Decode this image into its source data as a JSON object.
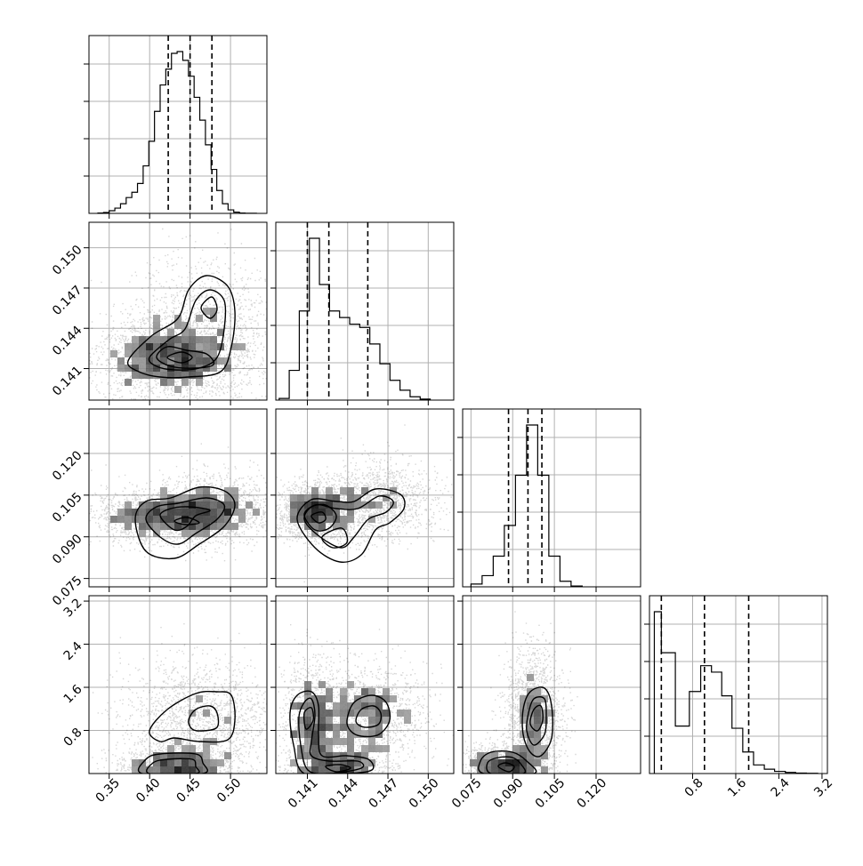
{
  "chart_data": {
    "type": "corner",
    "parameters": [
      {
        "range": [
          0.325,
          0.545
        ],
        "ticks": [
          0.35,
          0.4,
          0.45,
          0.5
        ],
        "tick_labels": [
          "0.35",
          "0.40",
          "0.45",
          "0.50"
        ],
        "quantiles": [
          0.423,
          0.45,
          0.477
        ],
        "hist": {
          "edges": [
            0.336,
            0.343,
            0.35,
            0.357,
            0.364,
            0.371,
            0.378,
            0.385,
            0.392,
            0.399,
            0.406,
            0.413,
            0.42,
            0.427,
            0.434,
            0.441,
            0.448,
            0.455,
            0.462,
            0.469,
            0.476,
            0.483,
            0.49,
            0.497,
            0.504,
            0.511,
            0.518,
            0.525,
            0.532
          ],
          "counts": [
            0.2,
            0.5,
            1.5,
            3,
            5.5,
            9,
            12,
            17,
            27,
            41,
            58,
            73,
            82,
            91,
            92,
            87,
            78,
            66,
            53,
            39,
            25,
            13,
            5.5,
            2,
            0.7,
            0.2,
            0.1,
            0.05
          ]
        }
      },
      {
        "range": [
          0.13865,
          0.1519
        ],
        "ticks": [
          0.141,
          0.144,
          0.147,
          0.15
        ],
        "tick_labels": [
          "0.141",
          "0.144",
          "0.147",
          "0.150"
        ],
        "quantiles": [
          0.141,
          0.1426,
          0.1455
        ],
        "hist": {
          "edges": [
            0.1389,
            0.13965,
            0.1404,
            0.14115,
            0.1419,
            0.14265,
            0.1434,
            0.14415,
            0.1449,
            0.14565,
            0.1464,
            0.14715,
            0.1479,
            0.14865,
            0.1494,
            0.15015
          ],
          "counts": [
            0.5,
            9,
            27,
            49,
            35,
            27,
            25,
            23,
            22,
            17,
            11,
            6,
            3,
            1,
            0.3
          ]
        }
      },
      {
        "range": [
          0.072,
          0.136
        ],
        "ticks": [
          0.075,
          0.09,
          0.105,
          0.12
        ],
        "tick_labels": [
          "0.075",
          "0.090",
          "0.105",
          "0.120"
        ],
        "quantiles": [
          0.0885,
          0.0955,
          0.1005
        ],
        "hist": {
          "edges": [
            0.075,
            0.079,
            0.083,
            0.087,
            0.091,
            0.095,
            0.099,
            0.103,
            0.107,
            0.111,
            0.115
          ],
          "counts": [
            1,
            4,
            11,
            22,
            40,
            58,
            40,
            11,
            2,
            0.3
          ]
        }
      },
      {
        "range": [
          0.0,
          3.3
        ],
        "ticks": [
          0.8,
          1.6,
          2.4,
          3.2
        ],
        "tick_labels": [
          "0.8",
          "1.6",
          "2.4",
          "3.2"
        ],
        "quantiles": [
          0.22,
          1.02,
          1.84
        ],
        "hist": {
          "edges": [
            0.09,
            0.22,
            0.48,
            0.74,
            0.95,
            1.15,
            1.34,
            1.53,
            1.73,
            1.93,
            2.13,
            2.32,
            2.52,
            2.71,
            2.91,
            3.12
          ],
          "counts": [
            75,
            56,
            22,
            38,
            50,
            47,
            36,
            21,
            10,
            4,
            2,
            1,
            0.5,
            0.2,
            0.1
          ]
        }
      }
    ]
  }
}
